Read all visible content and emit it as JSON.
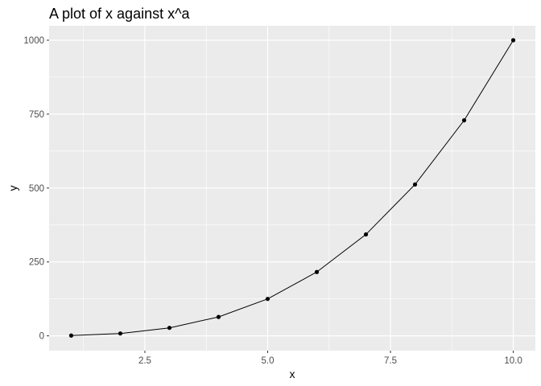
{
  "chart_data": {
    "type": "line",
    "title": "A plot of x against x^a",
    "xlabel": "x",
    "ylabel": "y",
    "xlim": [
      0.55,
      10.45
    ],
    "ylim": [
      -49.95,
      1048.95
    ],
    "x_major_ticks": [
      2.5,
      5.0,
      7.5,
      10.0
    ],
    "x_tick_labels": [
      "2.5",
      "5.0",
      "7.5",
      "10.0"
    ],
    "x_minor_ticks": [
      1.25,
      3.75,
      6.25,
      8.75
    ],
    "y_major_ticks": [
      0,
      250,
      500,
      750,
      1000
    ],
    "y_tick_labels": [
      "0",
      "250",
      "500",
      "750",
      "1000"
    ],
    "y_minor_ticks": [
      125,
      375,
      625,
      875
    ],
    "grid": true,
    "series": [
      {
        "x": [
          1,
          2,
          3,
          4,
          5,
          6,
          7,
          8,
          9,
          10
        ],
        "y": [
          1,
          8,
          27,
          64,
          125,
          216,
          343,
          512,
          729,
          1000
        ],
        "color": "#000000",
        "markers": true
      }
    ],
    "panel_background": "#ebebeb",
    "grid_color": "#ffffff"
  }
}
